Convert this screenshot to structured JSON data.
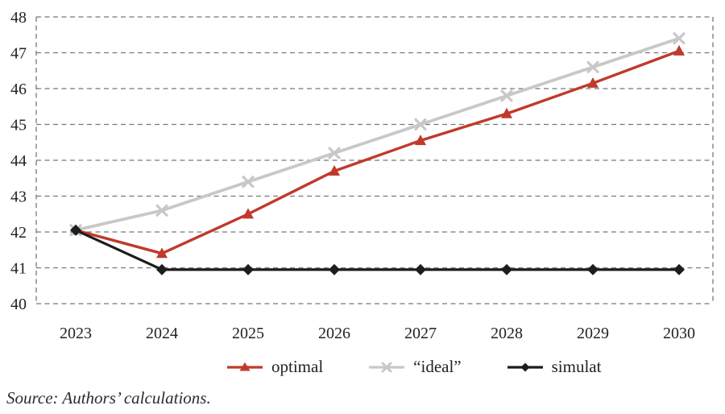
{
  "chart_data": {
    "type": "line",
    "title": "",
    "categories": [
      "2023",
      "2024",
      "2025",
      "2026",
      "2027",
      "2028",
      "2029",
      "2030"
    ],
    "series": [
      {
        "name": "optimal",
        "color": "#c03a2b",
        "marker": "triangle",
        "values": [
          42.05,
          41.4,
          42.5,
          43.7,
          44.55,
          45.3,
          46.15,
          47.05
        ]
      },
      {
        "name": "“ideal”",
        "color": "#c8c8c8",
        "marker": "x",
        "values": [
          42.05,
          42.6,
          43.4,
          44.2,
          45.0,
          45.8,
          46.6,
          47.4
        ]
      },
      {
        "name": "simulat",
        "color": "#1d1d1d",
        "marker": "diamond",
        "values": [
          42.05,
          40.95,
          40.95,
          40.95,
          40.95,
          40.95,
          40.95,
          40.95
        ]
      }
    ],
    "xlabel": "",
    "ylabel": "",
    "ylim": [
      40,
      48
    ],
    "y_ticks": [
      40,
      41,
      42,
      43,
      44,
      45,
      46,
      47,
      48
    ],
    "grid": "horizontal-dashed-with-dashed-side-borders",
    "legend_position": "bottom",
    "source": "Source: Authors’ calculations."
  },
  "colors": {
    "grid": "#777777",
    "axis_text": "#222222",
    "background": "#ffffff"
  }
}
